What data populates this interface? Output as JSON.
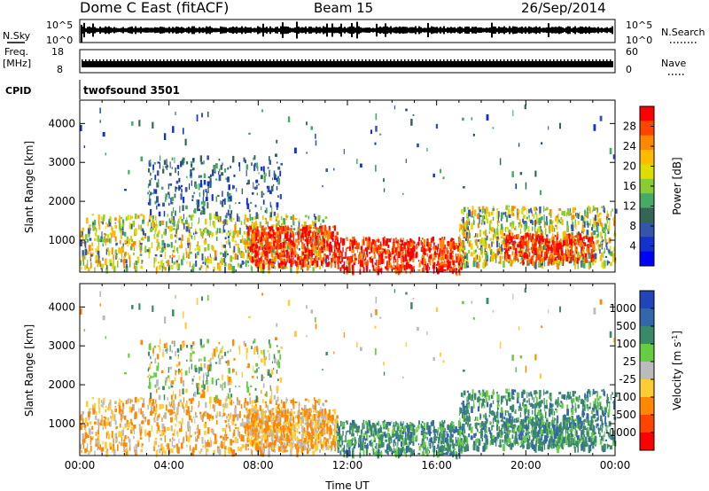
{
  "header": {
    "station": "Dome C East (fitACF)",
    "beam": "Beam 15",
    "date": "26/Sep/2014"
  },
  "nsky": {
    "left_label": "N.Sky",
    "left_ticks": [
      "10^5",
      "10^0"
    ],
    "right_ticks": [
      "10^5",
      "10^0"
    ],
    "right_label": "N.Search"
  },
  "freq": {
    "left_label_line1": "Freq.",
    "left_label_line2": "[MHz]",
    "left_ticks": [
      "18",
      "8"
    ],
    "right_ticks": [
      "60",
      "0"
    ],
    "right_label": "Nave"
  },
  "cpid": {
    "label": "CPID",
    "value": "twofsound 3501"
  },
  "chart_data": [
    {
      "type": "heatmap",
      "name": "power",
      "xlabel": "",
      "ylabel": "Slant Range [km]",
      "x_range_hours": [
        0,
        24
      ],
      "ylim": [
        180,
        4600
      ],
      "y_ticks": [
        1000,
        2000,
        3000,
        4000
      ],
      "colorbar": {
        "label": "Power [dB]",
        "ticks": [
          "28",
          "24",
          "20",
          "16",
          "12",
          "8",
          "4"
        ],
        "colors": [
          "#ff0000",
          "#ff4400",
          "#ff8800",
          "#ffbb00",
          "#dddd00",
          "#88cc33",
          "#44aa66",
          "#336655",
          "#3355aa",
          "#1133cc",
          "#0000ff"
        ]
      }
    },
    {
      "type": "heatmap",
      "name": "velocity",
      "xlabel": "Time UT",
      "ylabel": "Slant Range [km]",
      "x_range_hours": [
        0,
        24
      ],
      "ylim": [
        180,
        4600
      ],
      "y_ticks": [
        1000,
        2000,
        3000,
        4000
      ],
      "x_ticks": [
        "00:00",
        "04:00",
        "08:00",
        "12:00",
        "16:00",
        "20:00",
        "00:00"
      ],
      "colorbar": {
        "label": "Velocity [m s^-1]",
        "ticks": [
          "1000",
          "500",
          "100",
          "25",
          "-25",
          "-100",
          "-500",
          "-1000"
        ],
        "colors": [
          "#2244bb",
          "#3366aa",
          "#3a8a6a",
          "#66cc44",
          "#bbbbbb",
          "#ffcc33",
          "#ff8800",
          "#ff4400",
          "#ff0000"
        ]
      }
    }
  ]
}
